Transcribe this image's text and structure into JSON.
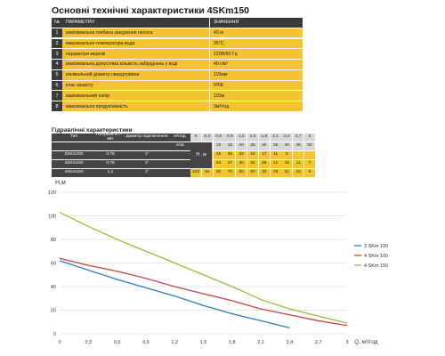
{
  "title": "Основні технічні характеристики 4SKm150",
  "specs": {
    "header": [
      "№",
      "ПАРАМЕТРИ",
      "ЗНАЧЕННЯ"
    ],
    "rows": [
      {
        "n": "1",
        "param": "максимальна глибина занурення насоса",
        "value": "40 м"
      },
      {
        "n": "2",
        "param": "максимальна температура води",
        "value": "35°С"
      },
      {
        "n": "3",
        "param": "параметри мережі",
        "value": "220В/50 Гц"
      },
      {
        "n": "4",
        "param": "максимальна допустима кількість забруднень у воді",
        "value": "40 г/м³"
      },
      {
        "n": "5",
        "param": "мінімальний діаметр свердловини",
        "value": "110мм"
      },
      {
        "n": "6",
        "param": "клас захисту",
        "value": "IP68"
      },
      {
        "n": "7",
        "param": "максимальний напір",
        "value": "103м"
      },
      {
        "n": "8",
        "param": "максимальна продуктивність",
        "value": "3м³/год"
      }
    ]
  },
  "hyd": {
    "title": "Гідравлічні характеристики",
    "type_header": "Тип",
    "power_header": "Потужність Р , кВт",
    "dia_header": "Діаметр підключення",
    "unit_flow": "м³/год",
    "unit_ls": "л/хв",
    "unit_h": "Н , м",
    "flow_values": [
      "0",
      "0,3",
      "0,6",
      "0,9",
      "1,2",
      "1,5",
      "1,8",
      "2,1",
      "2,4",
      "2,7",
      "3"
    ],
    "ls_values": [
      "0",
      "5",
      "10",
      "15",
      "20",
      "25",
      "30",
      "35",
      "40",
      "45",
      "50"
    ],
    "models": [
      {
        "name": "3SKm100",
        "power": "0,75",
        "dia": "1\"",
        "heads": [
          "62",
          "54",
          "46",
          "39",
          "32",
          "24",
          "17",
          "11",
          "5",
          "",
          ""
        ]
      },
      {
        "name": "4SKm100",
        "power": "0,75",
        "dia": "1\"",
        "heads": [
          "64",
          "58",
          "53",
          "47",
          "40",
          "34",
          "28",
          "21",
          "16",
          "11",
          "7"
        ]
      },
      {
        "name": "4SKm150",
        "power": "1,1",
        "dia": "1\"",
        "heads": [
          "103",
          "91",
          "80",
          "70",
          "60",
          "50",
          "40",
          "29",
          "21",
          "15",
          "9"
        ]
      }
    ]
  },
  "chart_data": {
    "type": "line",
    "ylabel": "H,м",
    "xlabel": "Q, м³/год",
    "xlim": [
      0,
      3
    ],
    "ylim": [
      0,
      120
    ],
    "x_ticks": [
      "0",
      "0,3",
      "0,6",
      "0,9",
      "1,2",
      "1,5",
      "1,8",
      "2,1",
      "2,4",
      "2,7",
      "3"
    ],
    "y_ticks": [
      "0",
      "20",
      "40",
      "60",
      "80",
      "100",
      "120"
    ],
    "grid": "horizontal",
    "legend": "right",
    "series": [
      {
        "name": "3 SKm 100",
        "color": "#2e7bbf",
        "x": [
          0,
          0.3,
          0.6,
          0.9,
          1.2,
          1.5,
          1.8,
          2.1,
          2.4
        ],
        "values": [
          62,
          54,
          46,
          39,
          32,
          24,
          17,
          11,
          5
        ]
      },
      {
        "name": "4 SKm 100",
        "color": "#c9433f",
        "x": [
          0,
          0.3,
          0.6,
          0.9,
          1.2,
          1.5,
          1.8,
          2.1,
          2.4,
          2.7,
          3
        ],
        "values": [
          64,
          58,
          53,
          47,
          40,
          34,
          28,
          21,
          16,
          11,
          7
        ]
      },
      {
        "name": "4 SKm 150",
        "color": "#9bbb3a",
        "x": [
          0,
          0.3,
          0.6,
          0.9,
          1.2,
          1.5,
          1.8,
          2.1,
          2.4,
          2.7,
          3
        ],
        "values": [
          103,
          91,
          80,
          70,
          60,
          50,
          40,
          29,
          21,
          15,
          9
        ]
      }
    ]
  }
}
